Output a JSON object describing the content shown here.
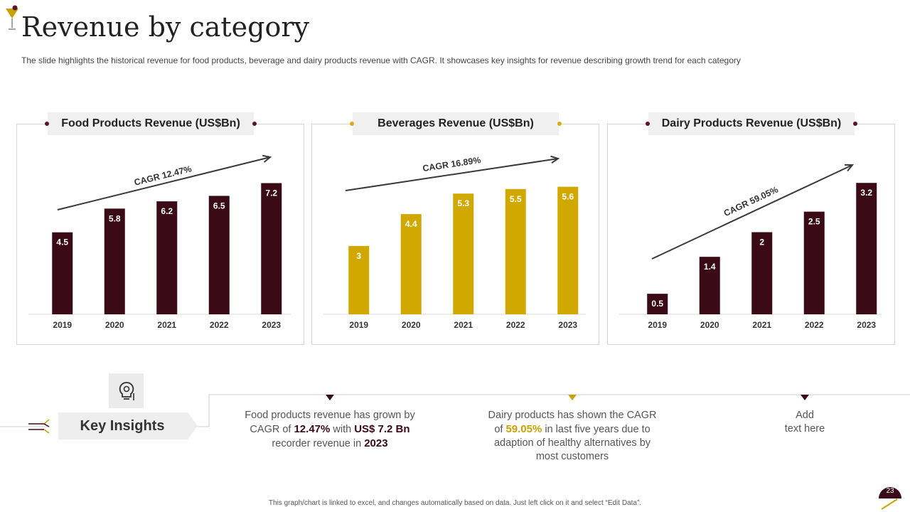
{
  "header": {
    "title": "Revenue by category",
    "subtitle": "The slide highlights the historical revenue for food products, beverage and dairy products revenue with CAGR. It showcases key insights for revenue describing growth trend for each category"
  },
  "chart_data": [
    {
      "type": "bar",
      "title": "Food Products Revenue (US$Bn)",
      "categories": [
        "2019",
        "2020",
        "2021",
        "2022",
        "2023"
      ],
      "values": [
        4.5,
        5.8,
        6.2,
        6.5,
        7.2
      ],
      "annotation": "CAGR 12.47%",
      "color": "#3a0a16",
      "ylim": [
        0,
        8
      ],
      "grid": false,
      "legend": "none"
    },
    {
      "type": "bar",
      "title": "Beverages Revenue (US$Bn)",
      "categories": [
        "2019",
        "2020",
        "2021",
        "2022",
        "2023"
      ],
      "values": [
        3,
        4.4,
        5.3,
        5.5,
        5.6
      ],
      "annotation": "CAGR 16.89%",
      "color": "#d1a800",
      "ylim": [
        0,
        6.4
      ],
      "grid": false,
      "legend": "none"
    },
    {
      "type": "bar",
      "title": "Dairy Products Revenue (US$Bn)",
      "categories": [
        "2019",
        "2020",
        "2021",
        "2022",
        "2023"
      ],
      "values": [
        0.5,
        1.4,
        2,
        2.5,
        3.2
      ],
      "annotation": "CAGR 59.05%",
      "color": "#3a0a16",
      "ylim": [
        0,
        3.55
      ],
      "grid": false,
      "legend": "none"
    }
  ],
  "insights": {
    "label": "Key Insights",
    "icon": "lightbulb-gear-icon",
    "items": [
      {
        "marker_color": "#3a0a16",
        "t1": "Food products revenue has grown by CAGR of ",
        "h1": "12.47%",
        "t2": " with ",
        "h2": "US$ 7.2 Bn",
        "t3": " recorder revenue in ",
        "h3": "2023"
      },
      {
        "marker_color": "#c9a200",
        "t1": "Dairy products has shown the CAGR of ",
        "h1": "59.05%",
        "t2": " in last five years due to adaption of healthy alternatives by most customers"
      },
      {
        "marker_color": "#3a0a16",
        "line1": "Add",
        "line2": "text here"
      }
    ]
  },
  "footer": {
    "note": "This graph/chart is linked to excel, and changes automatically based on data. Just left click on it and select “Edit Data”.",
    "page_number": "23"
  },
  "colors": {
    "maroon": "#3a0a16",
    "gold": "#d1a800",
    "title_dot_maroon": "#5a1428",
    "title_dot_gold": "#d8ad1a"
  }
}
